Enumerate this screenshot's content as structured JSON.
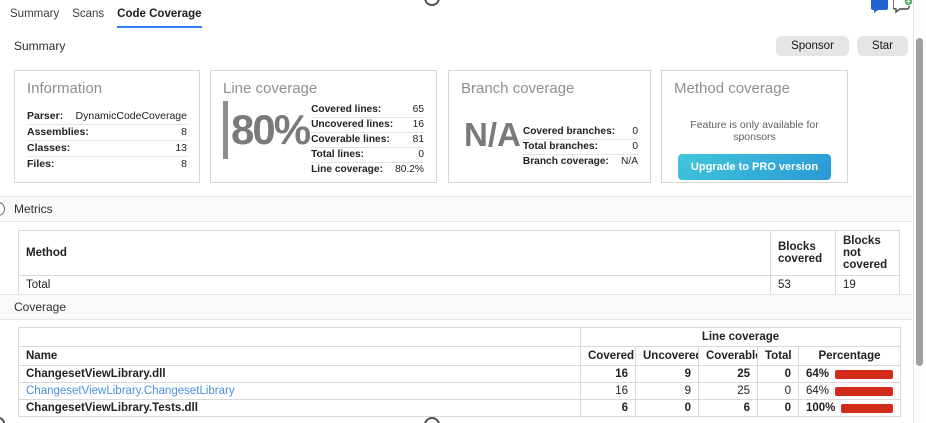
{
  "tabs": [
    {
      "label": "Summary",
      "active": false
    },
    {
      "label": "Scans",
      "active": false
    },
    {
      "label": "Code Coverage",
      "active": true
    }
  ],
  "top_icons": [
    {
      "name": "chat-bubble-icon"
    },
    {
      "name": "add-comment-icon"
    }
  ],
  "summary": {
    "title": "Summary",
    "sponsor_label": "Sponsor",
    "star_label": "Star",
    "cards": {
      "information": {
        "title": "Information",
        "rows": [
          {
            "label": "Parser:",
            "value": "DynamicCodeCoverage"
          },
          {
            "label": "Assemblies:",
            "value": "8"
          },
          {
            "label": "Classes:",
            "value": "13"
          },
          {
            "label": "Files:",
            "value": "8"
          }
        ]
      },
      "line_coverage": {
        "title": "Line coverage",
        "big_value": "80%",
        "rows": [
          {
            "label": "Covered lines:",
            "value": "65"
          },
          {
            "label": "Uncovered lines:",
            "value": "16"
          },
          {
            "label": "Coverable lines:",
            "value": "81"
          },
          {
            "label": "Total lines:",
            "value": "0"
          },
          {
            "label": "Line coverage:",
            "value": "80.2%"
          }
        ]
      },
      "branch_coverage": {
        "title": "Branch coverage",
        "big_value": "N/A",
        "rows": [
          {
            "label": "Covered branches:",
            "value": "0"
          },
          {
            "label": "Total branches:",
            "value": "0"
          },
          {
            "label": "Branch coverage:",
            "value": "N/A"
          }
        ]
      },
      "method_coverage": {
        "title": "Method coverage",
        "note": "Feature is only available for sponsors",
        "button_label": "Upgrade to PRO version"
      }
    }
  },
  "metrics": {
    "title": "Metrics",
    "table": {
      "headers": {
        "method": "Method",
        "blocks_covered": "Blocks covered",
        "blocks_not_covered": "Blocks not covered"
      },
      "total_row": {
        "name": "Total",
        "blocks_covered": "53",
        "blocks_not_covered": "19"
      }
    }
  },
  "coverage": {
    "title": "Coverage",
    "table": {
      "group_header": "Line coverage",
      "headers": {
        "name": "Name",
        "covered": "Covered",
        "uncovered": "Uncovered",
        "coverable": "Coverable",
        "total": "Total",
        "percentage": "Percentage"
      },
      "rows": [
        {
          "name": "ChangesetViewLibrary.dll",
          "covered": "16",
          "uncovered": "9",
          "coverable": "25",
          "total": "0",
          "percentage": "64%",
          "green_pct": 64
        },
        {
          "name": "ChangesetViewLibrary.ChangesetLibrary",
          "covered": "16",
          "uncovered": "9",
          "coverable": "25",
          "total": "0",
          "percentage": "64%",
          "green_pct": 64
        },
        {
          "name": "ChangesetViewLibrary.Tests.dll",
          "covered": "6",
          "uncovered": "0",
          "coverable": "6",
          "total": "0",
          "percentage": "100%",
          "green_pct": 100
        }
      ]
    }
  },
  "colors": {
    "tab_accent": "#2d7ef7",
    "link_blue": "#4a90d9",
    "bar_green": "#2e8f1e",
    "bar_red": "#d32b1a",
    "pro_button_gradient_start": "#41c6da",
    "pro_button_gradient_end": "#2a99d6"
  }
}
